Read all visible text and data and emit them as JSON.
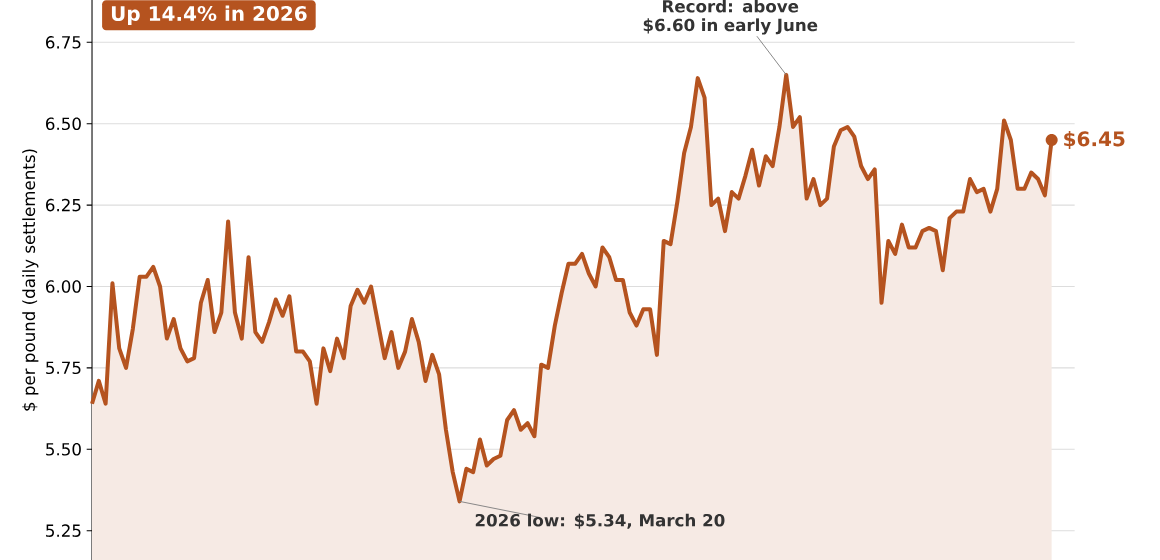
{
  "chart_data": {
    "type": "area",
    "title": "Up 14.4% in 2026",
    "ylabel": "$ per pound (daily settlements)",
    "categories": [
      null,
      null,
      null,
      null,
      null,
      null,
      null,
      null,
      null,
      null,
      null,
      null,
      null,
      null,
      null,
      null,
      null,
      null,
      null,
      null,
      null,
      null,
      null,
      null,
      null,
      null,
      null,
      null,
      null,
      null,
      null,
      null,
      null,
      null,
      null,
      null,
      null,
      null,
      null,
      null,
      null,
      null,
      null,
      null,
      null,
      null,
      null,
      null,
      null,
      null,
      null,
      null,
      null,
      null,
      null,
      null,
      null,
      null,
      null,
      null,
      null,
      null,
      null,
      null,
      null,
      null,
      null,
      null,
      null,
      null,
      null,
      null,
      null,
      null,
      null,
      null,
      null,
      null,
      null,
      null,
      null,
      null,
      null,
      null,
      null,
      null,
      null,
      null,
      null,
      null,
      null,
      null,
      null,
      null,
      null,
      null,
      null,
      null,
      null,
      null,
      null,
      null,
      null,
      null,
      null,
      null,
      null,
      null,
      null,
      null,
      null,
      null,
      null,
      null,
      null,
      null,
      null,
      null,
      null,
      null,
      null,
      null,
      null,
      null,
      null,
      null,
      null,
      null,
      null,
      null,
      null,
      null,
      null,
      null,
      null,
      null,
      null,
      null,
      null,
      null,
      null,
      null
    ],
    "values": [
      5.64,
      5.71,
      5.64,
      6.01,
      5.81,
      5.75,
      5.87,
      6.03,
      6.03,
      6.06,
      6.0,
      5.84,
      5.9,
      5.81,
      5.77,
      5.78,
      5.95,
      6.02,
      5.86,
      5.92,
      6.2,
      5.92,
      5.84,
      6.09,
      5.86,
      5.83,
      5.89,
      5.96,
      5.91,
      5.97,
      5.8,
      5.8,
      5.77,
      5.64,
      5.81,
      5.74,
      5.84,
      5.78,
      5.94,
      5.99,
      5.95,
      6.0,
      5.89,
      5.78,
      5.86,
      5.75,
      5.8,
      5.9,
      5.83,
      5.71,
      5.79,
      5.73,
      5.56,
      5.43,
      5.34,
      5.44,
      5.43,
      5.53,
      5.45,
      5.47,
      5.48,
      5.59,
      5.62,
      5.56,
      5.58,
      5.54,
      5.76,
      5.75,
      5.88,
      5.98,
      6.07,
      6.07,
      6.1,
      6.04,
      6.0,
      6.12,
      6.09,
      6.02,
      6.02,
      5.92,
      5.88,
      5.93,
      5.93,
      5.79,
      6.14,
      6.13,
      6.26,
      6.41,
      6.49,
      6.64,
      6.58,
      6.25,
      6.27,
      6.17,
      6.29,
      6.27,
      6.34,
      6.42,
      6.31,
      6.4,
      6.37,
      6.49,
      6.65,
      6.49,
      6.52,
      6.27,
      6.33,
      6.25,
      6.27,
      6.43,
      6.48,
      6.49,
      6.46,
      6.37,
      6.33,
      6.36,
      5.95,
      6.14,
      6.1,
      6.19,
      6.12,
      6.12,
      6.17,
      6.18,
      6.17,
      6.05,
      6.21,
      6.23,
      6.23,
      6.33,
      6.29,
      6.3,
      6.23,
      6.3,
      6.51,
      6.45,
      6.3,
      6.3,
      6.35,
      6.33,
      6.28,
      6.45
    ],
    "value_labels": [
      null,
      null,
      null,
      null,
      null,
      null,
      null,
      null,
      null,
      null,
      null,
      null,
      null,
      null,
      null,
      null,
      null,
      null,
      null,
      null,
      null,
      null,
      null,
      null,
      null,
      null,
      null,
      null,
      null,
      null,
      null,
      null,
      null,
      null,
      null,
      null,
      null,
      null,
      null,
      null,
      null,
      null,
      null,
      null,
      null,
      null,
      null,
      null,
      null,
      null,
      null,
      null,
      null,
      null,
      null,
      null,
      null,
      null,
      null,
      null,
      null,
      null,
      null,
      null,
      null,
      null,
      null,
      null,
      null,
      null,
      null,
      null,
      null,
      null,
      null,
      null,
      null,
      null,
      null,
      null,
      null,
      null,
      null,
      null,
      null,
      null,
      null,
      null,
      null,
      null,
      null,
      null,
      null,
      null,
      null,
      null,
      null,
      null,
      null,
      null,
      null,
      null,
      null,
      null,
      null,
      null,
      null,
      null,
      null,
      null,
      null,
      null,
      null,
      null,
      null,
      null,
      null,
      null,
      null,
      null,
      null,
      null,
      null,
      null,
      null,
      null,
      null,
      null,
      null,
      null,
      null,
      null,
      null,
      null,
      null,
      null,
      null,
      null,
      null,
      null,
      null,
      "$6.45"
    ],
    "color": "#b5531f",
    "ylim": [
      5.16,
      6.88
    ],
    "yticks": [
      {
        "value": 5.25,
        "label": "5.25"
      },
      {
        "value": 5.5,
        "label": "5.50"
      },
      {
        "value": 5.75,
        "label": "5.75"
      },
      {
        "value": 6.0,
        "label": "6.00"
      },
      {
        "value": 6.25,
        "label": "6.25"
      },
      {
        "value": 6.5,
        "label": "6.50"
      },
      {
        "value": 6.75,
        "label": "6.75"
      }
    ],
    "grid": "y",
    "annotations": [
      "Record: above $6.60 in early June",
      "2026 low: $5.34, March 20"
    ]
  }
}
